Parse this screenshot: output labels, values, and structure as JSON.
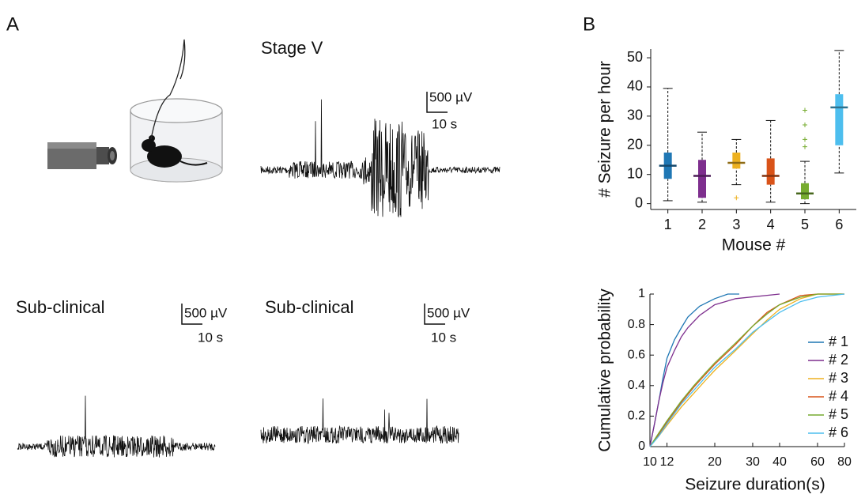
{
  "panel_a": {
    "label": "A",
    "traces": [
      {
        "title": "Stage V",
        "scale_voltage": "500 µV",
        "scale_time": "10 s"
      },
      {
        "title": "Sub-clinical",
        "scale_voltage": "500 µV",
        "scale_time": "10 s"
      },
      {
        "title": "Sub-clinical",
        "scale_voltage": "500 µV",
        "scale_time": "10 s"
      }
    ]
  },
  "panel_b": {
    "label": "B"
  },
  "chart_data": [
    {
      "type": "box",
      "y_label": "# Seizure per hour",
      "x_label": "Mouse #",
      "categories": [
        "1",
        "2",
        "3",
        "4",
        "5",
        "6"
      ],
      "ylim": [
        -2,
        53
      ],
      "yticks": [
        0,
        10,
        20,
        30,
        40,
        50
      ],
      "boxes": [
        {
          "color": "#1f77b4",
          "whisker_low": 1,
          "q1": 8.5,
          "median": 13,
          "q3": 17.5,
          "whisker_high": 39.5,
          "outliers": []
        },
        {
          "color": "#7e2f8e",
          "whisker_low": 0.5,
          "q1": 2,
          "median": 9.5,
          "q3": 15,
          "whisker_high": 24.5,
          "outliers": []
        },
        {
          "color": "#edb120",
          "whisker_low": 6.5,
          "q1": 12,
          "median": 14,
          "q3": 17.5,
          "whisker_high": 22,
          "outliers": [
            2
          ]
        },
        {
          "color": "#d95319",
          "whisker_low": 0.5,
          "q1": 6.5,
          "median": 9.5,
          "q3": 15.5,
          "whisker_high": 28.5,
          "outliers": []
        },
        {
          "color": "#77ac30",
          "whisker_low": 0,
          "q1": 1.5,
          "median": 3.5,
          "q3": 7,
          "whisker_high": 14.5,
          "outliers": [
            19.5,
            22,
            27,
            32
          ]
        },
        {
          "color": "#4dbeee",
          "whisker_low": 10.5,
          "q1": 20,
          "median": 33,
          "q3": 37.5,
          "whisker_high": 52.5,
          "outliers": []
        }
      ]
    },
    {
      "type": "line",
      "x_label": "Seizure duration(s)",
      "y_label": "Cumulative probability",
      "xscale": "log",
      "xlim": [
        10,
        80
      ],
      "xticks": [
        10,
        12,
        20,
        30,
        40,
        60,
        80
      ],
      "ylim": [
        0,
        1
      ],
      "yticks": [
        0,
        0.2,
        0.4,
        0.6,
        0.8,
        1
      ],
      "legend": "lower right",
      "series": [
        {
          "name": "# 1",
          "color": "#1f77b4",
          "x": [
            10,
            10.5,
            11,
            11.5,
            12,
            13,
            14,
            15,
            17,
            20,
            23,
            26
          ],
          "values": [
            0,
            0.15,
            0.3,
            0.45,
            0.58,
            0.7,
            0.78,
            0.85,
            0.92,
            0.97,
            1,
            1
          ]
        },
        {
          "name": "# 2",
          "color": "#7e2f8e",
          "x": [
            10,
            10.5,
            11,
            11.5,
            12,
            13,
            14,
            15,
            17,
            20,
            25,
            40
          ],
          "values": [
            0,
            0.15,
            0.3,
            0.42,
            0.52,
            0.63,
            0.72,
            0.78,
            0.86,
            0.93,
            0.97,
            1
          ]
        },
        {
          "name": "# 3",
          "color": "#edb120",
          "x": [
            10,
            11,
            12,
            14,
            16,
            18,
            20,
            25,
            30,
            35,
            40,
            50,
            60,
            80
          ],
          "values": [
            0,
            0.07,
            0.14,
            0.26,
            0.35,
            0.43,
            0.5,
            0.63,
            0.74,
            0.83,
            0.9,
            0.97,
            1,
            1
          ]
        },
        {
          "name": "# 4",
          "color": "#d95319",
          "x": [
            10,
            11,
            12,
            14,
            16,
            18,
            20,
            25,
            30,
            35,
            40,
            50,
            60,
            80
          ],
          "values": [
            0,
            0.08,
            0.16,
            0.29,
            0.39,
            0.47,
            0.54,
            0.67,
            0.79,
            0.88,
            0.93,
            0.99,
            1,
            1
          ]
        },
        {
          "name": "# 5",
          "color": "#77ac30",
          "x": [
            10,
            11,
            12,
            14,
            16,
            18,
            20,
            25,
            30,
            35,
            40,
            50,
            60,
            80
          ],
          "values": [
            0,
            0.09,
            0.17,
            0.3,
            0.4,
            0.48,
            0.55,
            0.68,
            0.79,
            0.87,
            0.93,
            0.98,
            1,
            1
          ]
        },
        {
          "name": "# 6",
          "color": "#4dbeee",
          "x": [
            10,
            11,
            12,
            14,
            16,
            18,
            20,
            25,
            30,
            35,
            40,
            50,
            60,
            80
          ],
          "values": [
            0,
            0.07,
            0.15,
            0.28,
            0.37,
            0.45,
            0.52,
            0.64,
            0.75,
            0.82,
            0.88,
            0.95,
            0.98,
            1
          ]
        }
      ]
    }
  ]
}
